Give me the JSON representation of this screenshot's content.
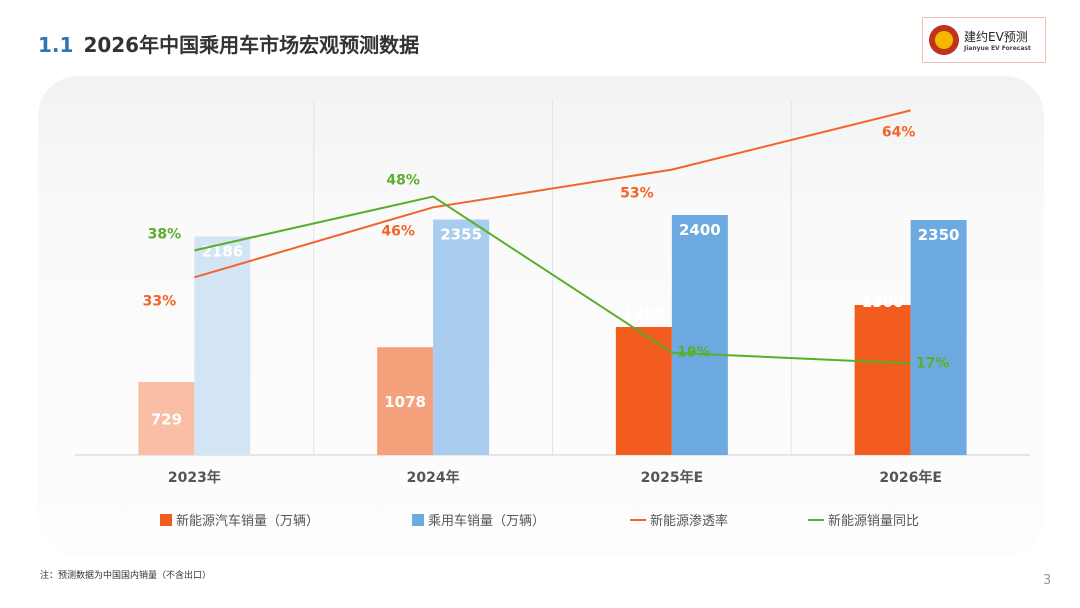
{
  "header": {
    "section_number": "1.1",
    "title": "2026年中国乘用车市场宏观预测数据"
  },
  "logo": {
    "text": "建约EV预测",
    "subtext": "Jianyue EV Forecast"
  },
  "chart_data": {
    "type": "bar+line",
    "categories": [
      "2023年",
      "2024年",
      "2025年E",
      "2026年E"
    ],
    "series": [
      {
        "name": "新能源汽车销量（万辆）",
        "type": "bar",
        "values": [
          729,
          1078,
          1280,
          1500
        ],
        "colors": [
          "#f9bea3",
          "#f5a27c",
          "#f25c1e",
          "#f25c1e"
        ]
      },
      {
        "name": "乘用车销量（万辆）",
        "type": "bar",
        "values": [
          2186,
          2355,
          2400,
          2350
        ],
        "colors": [
          "#d3e5f5",
          "#a9cdef",
          "#6eaae2",
          "#6eaae2"
        ]
      },
      {
        "name": "新能源渗透率",
        "type": "line",
        "unit": "%",
        "values": [
          33,
          46,
          53,
          64
        ],
        "color": "#f0652a"
      },
      {
        "name": "新能源销量同比",
        "type": "line",
        "unit": "%",
        "values": [
          38,
          48,
          19,
          17
        ],
        "color": "#5aaf2a"
      }
    ],
    "bar_ylim": [
      0,
      3500
    ],
    "line_ylim": [
      0,
      65
    ],
    "grid": "vertical separators",
    "legend": "bottom"
  },
  "footer": {
    "note": "注：预测数据为中国国内销量（不含出口）",
    "page": "3"
  }
}
